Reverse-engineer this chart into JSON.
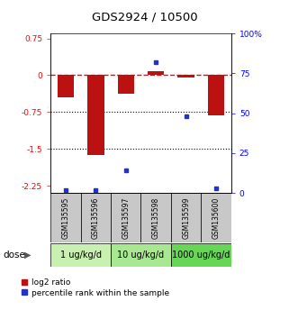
{
  "title": "GDS2924 / 10500",
  "samples": [
    "GSM135595",
    "GSM135596",
    "GSM135597",
    "GSM135598",
    "GSM135599",
    "GSM135600"
  ],
  "log2_ratio": [
    -0.45,
    -1.62,
    -0.38,
    0.08,
    -0.04,
    -0.82
  ],
  "percentile_rank": [
    2,
    2,
    14,
    82,
    48,
    3
  ],
  "ylim_left": [
    -2.4,
    0.85
  ],
  "ylim_right": [
    0,
    100
  ],
  "yticks_left": [
    0.75,
    0,
    -0.75,
    -1.5,
    -2.25
  ],
  "yticks_right": [
    100,
    75,
    50,
    25,
    0
  ],
  "hlines": [
    0,
    -0.75,
    -1.5
  ],
  "hline_styles": [
    "dashed",
    "dotted",
    "dotted"
  ],
  "hline_colors": [
    "red",
    "black",
    "black"
  ],
  "dose_groups": [
    {
      "label": "1 ug/kg/d",
      "samples": [
        "GSM135595",
        "GSM135596"
      ],
      "color": "#c8f0b0"
    },
    {
      "label": "10 ug/kg/d",
      "samples": [
        "GSM135597",
        "GSM135598"
      ],
      "color": "#a8e890"
    },
    {
      "label": "1000 ug/kg/d",
      "samples": [
        "GSM135599",
        "GSM135600"
      ],
      "color": "#66d655"
    }
  ],
  "bar_width": 0.55,
  "red_color": "#bb1111",
  "blue_color": "#2233cc",
  "sample_box_color": "#c8c8c8",
  "legend_red_label": "log2 ratio",
  "legend_blue_label": "percentile rank within the sample"
}
